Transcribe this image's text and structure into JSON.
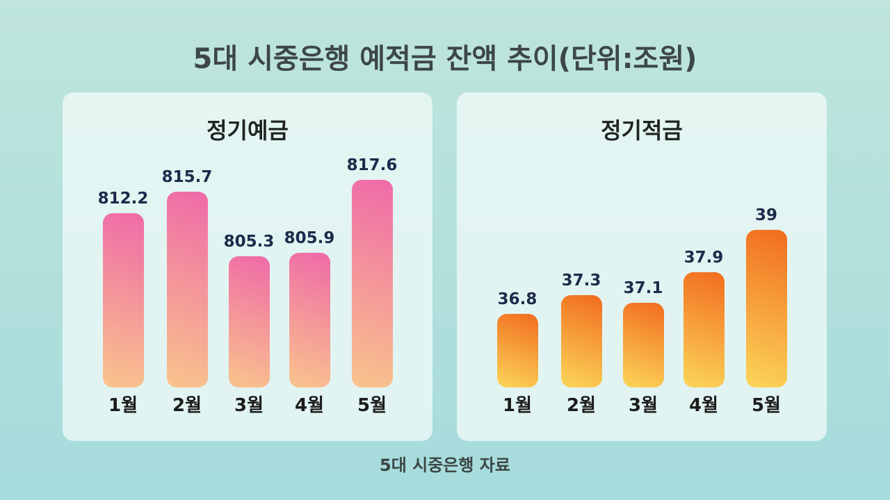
{
  "title": "5대 시중은행 예적금 잔액 추이(단위:조원)",
  "source": "5대 시중은행 자료",
  "chart_data": [
    {
      "type": "bar",
      "title": "정기예금",
      "categories": [
        "1월",
        "2월",
        "3월",
        "4월",
        "5월"
      ],
      "values": [
        812.2,
        815.7,
        805.3,
        805.9,
        817.6
      ],
      "value_labels": [
        "812.2",
        "815.7",
        "805.3",
        "805.9",
        "817.6"
      ],
      "colors": {
        "top": "#ef6aa8",
        "bottom": "#f9c48c"
      },
      "grid": false
    },
    {
      "type": "bar",
      "title": "정기적금",
      "categories": [
        "1월",
        "2월",
        "3월",
        "4월",
        "5월"
      ],
      "values": [
        36.8,
        37.3,
        37.1,
        37.9,
        39
      ],
      "value_labels": [
        "36.8",
        "37.3",
        "37.1",
        "37.9",
        "39"
      ],
      "colors": {
        "top": "#f26c1e",
        "bottom": "#fbd65a"
      },
      "grid": false
    }
  ]
}
